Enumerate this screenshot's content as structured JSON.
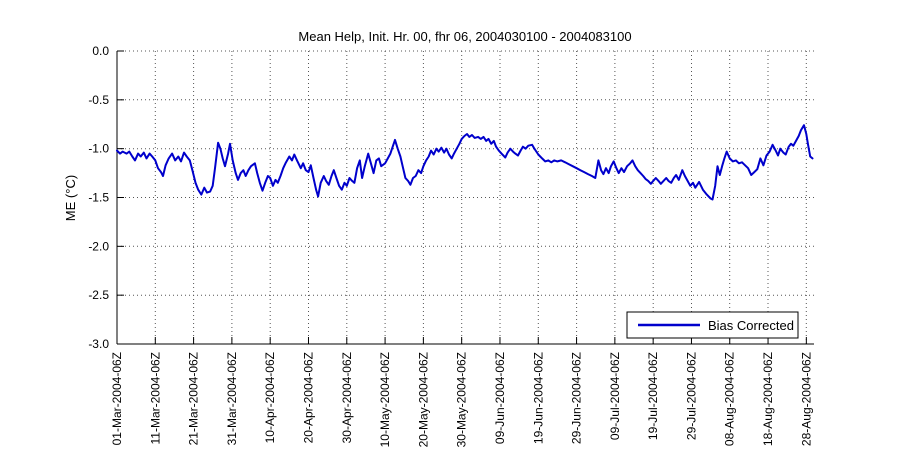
{
  "chart_data": {
    "type": "line",
    "title": "Mean Help, Init. Hr. 00, fhr 06, 2004030100 - 2004083100",
    "xlabel": "",
    "ylabel": "ME (°C)",
    "ylim": [
      -3.0,
      0.0
    ],
    "xlim_days": [
      0,
      182
    ],
    "grid": true,
    "yticks": [
      {
        "value": 0.0,
        "label": "0.0"
      },
      {
        "value": -0.5,
        "label": "-0.5"
      },
      {
        "value": -1.0,
        "label": "-1.0"
      },
      {
        "value": -1.5,
        "label": "-1.5"
      },
      {
        "value": -2.0,
        "label": "-2.0"
      },
      {
        "value": -2.5,
        "label": "-2.5"
      },
      {
        "value": -3.0,
        "label": "-3.0"
      }
    ],
    "xticks": [
      {
        "day": 0,
        "label": "01-Mar-2004-06Z"
      },
      {
        "day": 10,
        "label": "11-Mar-2004-06Z"
      },
      {
        "day": 20,
        "label": "21-Mar-2004-06Z"
      },
      {
        "day": 30,
        "label": "31-Mar-2004-06Z"
      },
      {
        "day": 40,
        "label": "10-Apr-2004-06Z"
      },
      {
        "day": 50,
        "label": "20-Apr-2004-06Z"
      },
      {
        "day": 60,
        "label": "30-Apr-2004-06Z"
      },
      {
        "day": 70,
        "label": "10-May-2004-06Z"
      },
      {
        "day": 80,
        "label": "20-May-2004-06Z"
      },
      {
        "day": 90,
        "label": "30-May-2004-06Z"
      },
      {
        "day": 100,
        "label": "09-Jun-2004-06Z"
      },
      {
        "day": 110,
        "label": "19-Jun-2004-06Z"
      },
      {
        "day": 120,
        "label": "29-Jun-2004-06Z"
      },
      {
        "day": 130,
        "label": "09-Jul-2004-06Z"
      },
      {
        "day": 140,
        "label": "19-Jul-2004-06Z"
      },
      {
        "day": 150,
        "label": "29-Jul-2004-06Z"
      },
      {
        "day": 160,
        "label": "08-Aug-2004-06Z"
      },
      {
        "day": 170,
        "label": "18-Aug-2004-06Z"
      },
      {
        "day": 180,
        "label": "28-Aug-2004-06Z"
      }
    ],
    "legend": {
      "position": "south-east"
    },
    "series": [
      {
        "name": "Bias Corrected",
        "color": "#0000cc",
        "x_days": [
          0,
          0.8,
          1.5,
          2.5,
          3.2,
          4,
          4.7,
          5.5,
          6.2,
          7,
          7.7,
          8.5,
          9.2,
          10,
          10.7,
          11.5,
          12,
          12.7,
          13.5,
          14.4,
          15.2,
          16,
          16.7,
          17.5,
          18.2,
          19,
          19.7,
          20.5,
          21.2,
          22,
          22.8,
          23.5,
          24.3,
          25,
          25.6,
          26.4,
          27,
          27.6,
          28.2,
          29,
          29.5,
          30.2,
          31,
          31.6,
          32.3,
          33,
          33.6,
          34.3,
          35,
          36,
          36.6,
          37.3,
          38,
          38.7,
          39.4,
          40,
          40.7,
          41.4,
          42,
          42.7,
          43.4,
          44,
          45,
          45.7,
          46.3,
          47,
          48,
          48.6,
          49.3,
          50,
          50.6,
          51.3,
          52,
          52.5,
          53.2,
          54,
          54.6,
          55.3,
          56,
          56.6,
          57.3,
          58,
          58.7,
          59.4,
          60,
          60.7,
          61.4,
          62,
          62.7,
          63.4,
          64,
          64.7,
          65.6,
          66.3,
          67,
          67.7,
          68.4,
          69,
          70,
          70.7,
          71.4,
          72,
          72.6,
          73.3,
          74,
          74.7,
          75.3,
          76,
          76.6,
          77.3,
          78,
          78.7,
          79.4,
          80,
          80.7,
          81.4,
          82,
          82.7,
          83.4,
          84,
          84.7,
          85.4,
          86,
          86.7,
          87.4,
          88,
          88.7,
          89.4,
          90,
          90.7,
          91.4,
          92,
          92.7,
          93.4,
          94.3,
          95,
          95.7,
          96.4,
          97,
          97.7,
          98.4,
          99,
          99.7,
          100.4,
          101.4,
          102,
          102.7,
          103.4,
          104,
          104.7,
          105.4,
          106,
          106.7,
          107.4,
          108.4,
          109,
          110,
          111,
          111.8,
          112.6,
          113.4,
          114.2,
          115,
          116,
          117,
          118,
          119,
          120,
          121,
          122,
          123,
          124,
          124.9,
          125.7,
          126.4,
          127,
          127.7,
          128.4,
          129,
          129.7,
          130.4,
          131,
          131.7,
          132.4,
          133.2,
          134,
          134.6,
          135.3,
          136,
          136.7,
          137.4,
          138,
          138.7,
          139.4,
          140,
          140.7,
          141.4,
          142,
          142.7,
          143.4,
          144,
          144.7,
          145.4,
          146,
          146.7,
          147.6,
          148.3,
          149,
          149.7,
          150.4,
          151,
          152,
          153,
          154,
          155,
          155.5,
          156.2,
          156.8,
          157.4,
          158,
          158.6,
          159.2,
          160,
          160.8,
          161.6,
          162.4,
          163.2,
          164,
          164.8,
          165.6,
          166.4,
          167.2,
          168,
          168.8,
          169.6,
          170.4,
          171.2,
          172,
          172.6,
          173.2,
          174,
          174.6,
          175.4,
          176,
          176.6,
          177.3,
          178,
          178.6,
          179.4,
          180,
          180.4,
          181,
          181.6
        ],
        "values": [
          -1.02,
          -1.05,
          -1.03,
          -1.05,
          -1.03,
          -1.08,
          -1.12,
          -1.05,
          -1.08,
          -1.04,
          -1.1,
          -1.05,
          -1.08,
          -1.12,
          -1.2,
          -1.24,
          -1.28,
          -1.17,
          -1.1,
          -1.05,
          -1.12,
          -1.08,
          -1.13,
          -1.04,
          -1.08,
          -1.12,
          -1.22,
          -1.35,
          -1.42,
          -1.47,
          -1.4,
          -1.45,
          -1.44,
          -1.38,
          -1.2,
          -0.94,
          -1.0,
          -1.1,
          -1.18,
          -1.05,
          -0.95,
          -1.12,
          -1.25,
          -1.32,
          -1.25,
          -1.22,
          -1.28,
          -1.22,
          -1.18,
          -1.15,
          -1.25,
          -1.35,
          -1.43,
          -1.35,
          -1.28,
          -1.3,
          -1.38,
          -1.32,
          -1.35,
          -1.28,
          -1.2,
          -1.15,
          -1.08,
          -1.12,
          -1.06,
          -1.12,
          -1.2,
          -1.15,
          -1.22,
          -1.24,
          -1.17,
          -1.3,
          -1.42,
          -1.49,
          -1.35,
          -1.28,
          -1.33,
          -1.37,
          -1.28,
          -1.22,
          -1.3,
          -1.38,
          -1.42,
          -1.35,
          -1.38,
          -1.3,
          -1.33,
          -1.35,
          -1.2,
          -1.12,
          -1.3,
          -1.18,
          -1.05,
          -1.15,
          -1.25,
          -1.12,
          -1.1,
          -1.18,
          -1.15,
          -1.1,
          -1.05,
          -0.98,
          -0.91,
          -1.0,
          -1.08,
          -1.2,
          -1.3,
          -1.33,
          -1.37,
          -1.3,
          -1.28,
          -1.22,
          -1.25,
          -1.18,
          -1.12,
          -1.08,
          -1.02,
          -1.06,
          -1.0,
          -1.03,
          -0.99,
          -1.04,
          -1.0,
          -1.06,
          -1.1,
          -1.05,
          -1.0,
          -0.95,
          -0.9,
          -0.87,
          -0.85,
          -0.88,
          -0.86,
          -0.89,
          -0.88,
          -0.9,
          -0.88,
          -0.92,
          -0.9,
          -0.95,
          -0.92,
          -0.98,
          -1.02,
          -1.05,
          -1.09,
          -1.04,
          -1.0,
          -1.03,
          -1.05,
          -1.07,
          -1.02,
          -0.98,
          -1.0,
          -0.97,
          -0.96,
          -1.0,
          -1.06,
          -1.1,
          -1.13,
          -1.12,
          -1.14,
          -1.12,
          -1.13,
          -1.12,
          -1.14,
          -1.16,
          -1.18,
          -1.2,
          -1.22,
          -1.24,
          -1.26,
          -1.28,
          -1.3,
          -1.12,
          -1.22,
          -1.26,
          -1.2,
          -1.25,
          -1.18,
          -1.13,
          -1.2,
          -1.25,
          -1.2,
          -1.24,
          -1.18,
          -1.15,
          -1.12,
          -1.18,
          -1.22,
          -1.25,
          -1.28,
          -1.31,
          -1.33,
          -1.36,
          -1.33,
          -1.3,
          -1.33,
          -1.36,
          -1.33,
          -1.3,
          -1.33,
          -1.35,
          -1.3,
          -1.27,
          -1.32,
          -1.22,
          -1.28,
          -1.33,
          -1.38,
          -1.35,
          -1.4,
          -1.34,
          -1.42,
          -1.47,
          -1.51,
          -1.52,
          -1.38,
          -1.18,
          -1.27,
          -1.18,
          -1.1,
          -1.03,
          -1.1,
          -1.13,
          -1.12,
          -1.15,
          -1.14,
          -1.17,
          -1.2,
          -1.27,
          -1.24,
          -1.21,
          -1.1,
          -1.17,
          -1.07,
          -1.03,
          -0.96,
          -1.02,
          -1.07,
          -1.0,
          -1.04,
          -1.06,
          -0.98,
          -0.95,
          -0.97,
          -0.92,
          -0.87,
          -0.81,
          -0.76,
          -0.85,
          -0.95,
          -1.08,
          -1.1
        ]
      }
    ]
  },
  "colors": {
    "line": "#0000cc",
    "grid": "#555555",
    "axis": "#000000",
    "background": "#ffffff",
    "legend_border": "#000000"
  }
}
